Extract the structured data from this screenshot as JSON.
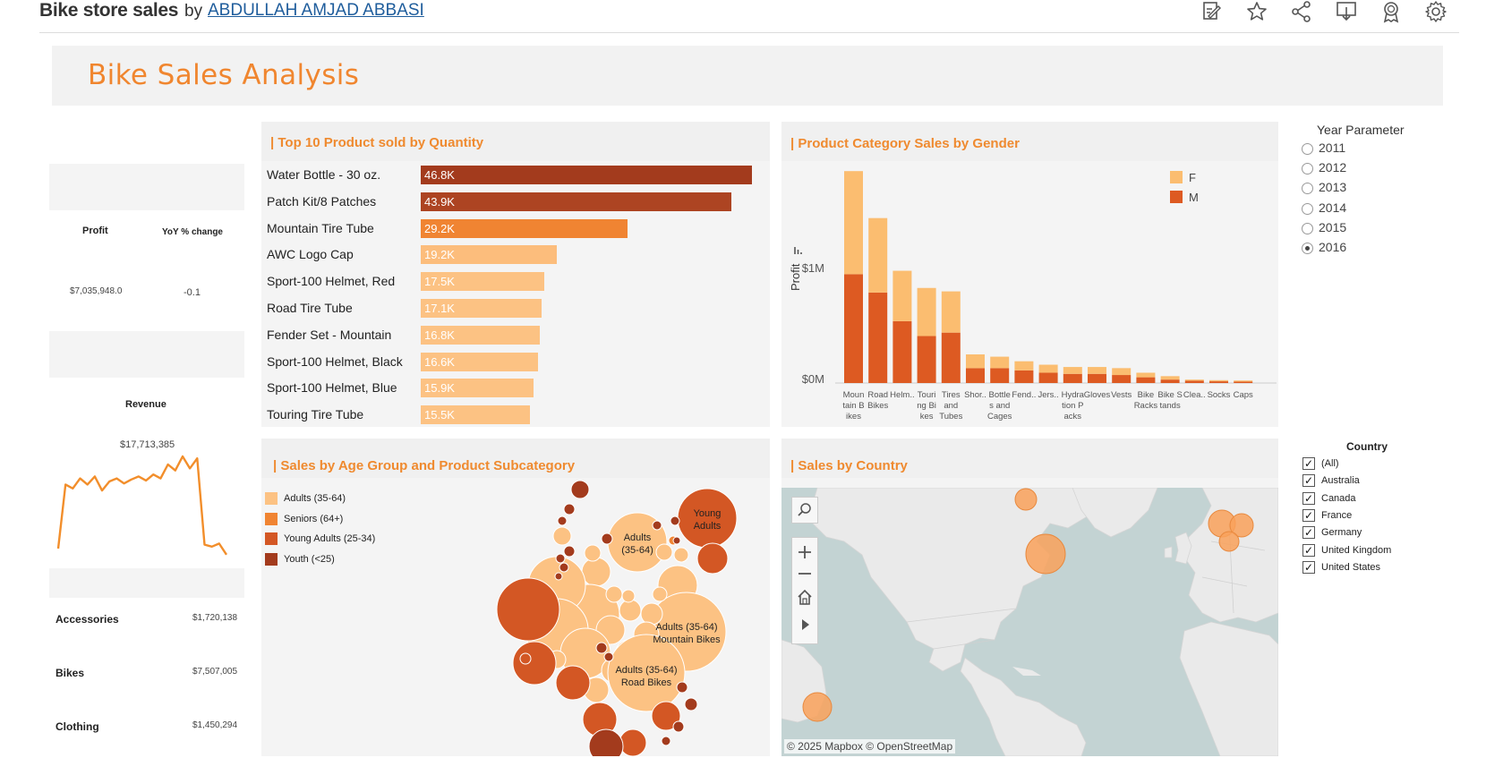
{
  "header": {
    "title": "Bike store sales",
    "by": "by",
    "author": "ABDULLAH AMJAD ABBASI",
    "toolbar_icons": [
      "edit-icon",
      "star-icon",
      "share-icon",
      "download-icon",
      "award-icon",
      "gear-icon"
    ]
  },
  "dashboard": {
    "title": "Bike Sales Analysis"
  },
  "kpi": {
    "profit_label": "Profit",
    "yoy_label": "YoY % change",
    "profit_value": "$7,035,948.0",
    "yoy_value": "-0.1",
    "revenue_label": "Revenue",
    "revenue_value": "$17,713,385",
    "revenue_trend": [
      0.08,
      0.72,
      0.68,
      0.78,
      0.72,
      0.8,
      0.66,
      0.75,
      0.78,
      0.73,
      0.77,
      0.8,
      0.76,
      0.82,
      0.78,
      0.92,
      0.86,
      1.0,
      0.88,
      0.98,
      0.12,
      0.1,
      0.13,
      0.02
    ],
    "categories": [
      {
        "name": "Accessories",
        "value": "$1,720,138"
      },
      {
        "name": "Bikes",
        "value": "$7,507,005"
      },
      {
        "name": "Clothing",
        "value": "$1,450,294"
      }
    ]
  },
  "top10": {
    "title": "| Top 10 Product sold by Quantity",
    "products": [
      {
        "name": "Water Bottle - 30 oz.",
        "label": "46.8K",
        "value": 46.8,
        "color": "#a33b1d"
      },
      {
        "name": "Patch Kit/8 Patches",
        "label": "43.9K",
        "value": 43.9,
        "color": "#ad4422"
      },
      {
        "name": "Mountain Tire Tube",
        "label": "29.2K",
        "value": 29.2,
        "color": "#f08432"
      },
      {
        "name": "AWC Logo Cap",
        "label": "19.2K",
        "value": 19.2,
        "color": "#fcbd7c"
      },
      {
        "name": "Sport-100 Helmet, Red",
        "label": "17.5K",
        "value": 17.5,
        "color": "#fcc283"
      },
      {
        "name": "Road Tire Tube",
        "label": "17.1K",
        "value": 17.1,
        "color": "#fcc283"
      },
      {
        "name": "Fender Set - Mountain",
        "label": "16.8K",
        "value": 16.8,
        "color": "#fcc283"
      },
      {
        "name": "Sport-100 Helmet, Black",
        "label": "16.6K",
        "value": 16.6,
        "color": "#fcc283"
      },
      {
        "name": "Sport-100 Helmet, Blue",
        "label": "15.9K",
        "value": 15.9,
        "color": "#fcc283"
      },
      {
        "name": "Touring Tire Tube",
        "label": "15.5K",
        "value": 15.5,
        "color": "#fcc283"
      }
    ]
  },
  "gender": {
    "title": "| Product Category Sales by Gender",
    "ylabel": "Profit",
    "y_ticks": [
      "$1M",
      "$0M"
    ],
    "legend": [
      {
        "name": "F",
        "color": "#fbbd70"
      },
      {
        "name": "M",
        "color": "#dd5a22"
      }
    ],
    "categories": [
      {
        "label": [
          "Moun",
          "tain B",
          "ikes"
        ],
        "m": 0.95,
        "f": 0.9
      },
      {
        "label": [
          "Road",
          "Bikes"
        ],
        "m": 0.79,
        "f": 0.65
      },
      {
        "label": [
          "Helm.."
        ],
        "m": 0.54,
        "f": 0.44
      },
      {
        "label": [
          "Touri",
          "ng Bi",
          "kes"
        ],
        "m": 0.41,
        "f": 0.42
      },
      {
        "label": [
          "Tires",
          "and",
          "Tubes"
        ],
        "m": 0.44,
        "f": 0.36
      },
      {
        "label": [
          "Shor.."
        ],
        "m": 0.13,
        "f": 0.12
      },
      {
        "label": [
          "Bottle",
          "s and",
          "Cages"
        ],
        "m": 0.13,
        "f": 0.1
      },
      {
        "label": [
          "Fend.."
        ],
        "m": 0.11,
        "f": 0.08
      },
      {
        "label": [
          "Jers.."
        ],
        "m": 0.09,
        "f": 0.07
      },
      {
        "label": [
          "Hydra",
          "tion P",
          "acks"
        ],
        "m": 0.08,
        "f": 0.06
      },
      {
        "label": [
          "Gloves"
        ],
        "m": 0.08,
        "f": 0.06
      },
      {
        "label": [
          "Vests"
        ],
        "m": 0.07,
        "f": 0.06
      },
      {
        "label": [
          "Bike",
          "Racks"
        ],
        "m": 0.05,
        "f": 0.04
      },
      {
        "label": [
          "Bike S",
          "tands"
        ],
        "m": 0.03,
        "f": 0.03
      },
      {
        "label": [
          "Clea.."
        ],
        "m": 0.02,
        "f": 0.01
      },
      {
        "label": [
          "Socks"
        ],
        "m": 0.015,
        "f": 0.01
      },
      {
        "label": [
          "Caps"
        ],
        "m": 0.012,
        "f": 0.01
      }
    ]
  },
  "year_param": {
    "title": "Year Parameter",
    "options": [
      "2011",
      "2012",
      "2013",
      "2014",
      "2015",
      "2016"
    ],
    "selected": "2016"
  },
  "age": {
    "title": "| Sales by Age Group and Product Subcategory",
    "legend": [
      {
        "name": "Adults (35-64)",
        "color": "#fcc283"
      },
      {
        "name": "Seniors (64+)",
        "color": "#f08432"
      },
      {
        "name": "Young Adults (25-34)",
        "color": "#d35724"
      },
      {
        "name": "Youth (<25)",
        "color": "#a33b1d"
      }
    ],
    "labels": {
      "young_adults": [
        "Young",
        "Adults"
      ],
      "adults": [
        "Adults",
        "(35-64)"
      ],
      "adults_mtb": [
        "Adults (35-64)",
        "Mountain Bikes"
      ],
      "adults_road": [
        "Adults (35-64)",
        "Road Bikes"
      ]
    }
  },
  "country_map": {
    "title": "| Sales by Country",
    "attribution": "© 2025 Mapbox  © OpenStreetMap"
  },
  "country_filter": {
    "title": "Country",
    "options": [
      "(All)",
      "Australia",
      "Canada",
      "France",
      "Germany",
      "United Kingdom",
      "United States"
    ],
    "check_mark": "✓"
  }
}
